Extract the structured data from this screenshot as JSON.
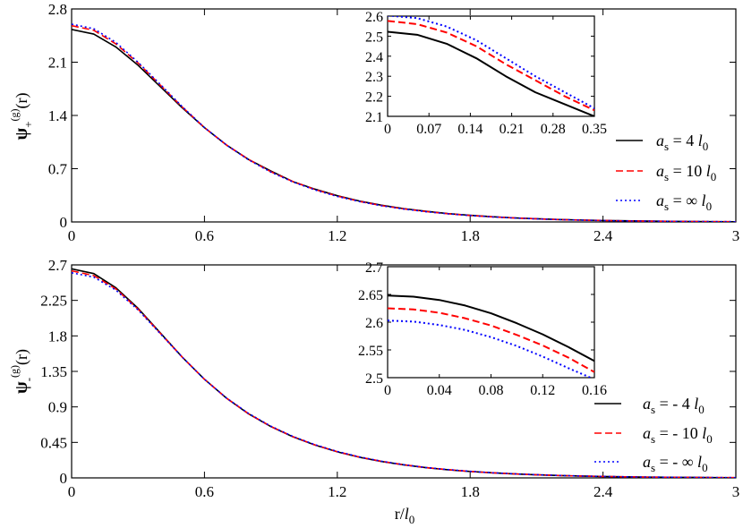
{
  "chart_data": [
    {
      "id": "top",
      "type": "line",
      "ylabel": {
        "main": "ψ",
        "sub": "+",
        "sup": "(g)",
        "arg": "(r)"
      },
      "xlim": [
        0,
        3
      ],
      "ylim": [
        0,
        2.8
      ],
      "xticks": [
        "0",
        "0.6",
        "1.2",
        "1.8",
        "2.4",
        "3"
      ],
      "yticks": [
        "0",
        "0.7",
        "1.4",
        "2.1",
        "2.8"
      ],
      "legend_position": "right",
      "series": [
        {
          "name": "a_s = 4 l_0",
          "label": {
            "a": "a",
            "s": "s",
            "text": " = 4 ",
            "l": "l",
            "zero": "0"
          },
          "style": "solid",
          "color": "#000000",
          "x": [
            0,
            0.1,
            0.2,
            0.3,
            0.4,
            0.5,
            0.6,
            0.7,
            0.8,
            0.9,
            1.0,
            1.1,
            1.2,
            1.3,
            1.4,
            1.5,
            1.6,
            1.7,
            1.8,
            1.9,
            2.0,
            2.1,
            2.2,
            2.3,
            2.4,
            2.5,
            2.6,
            2.7,
            2.8,
            2.9,
            3.0
          ],
          "y": [
            2.53,
            2.47,
            2.3,
            2.06,
            1.78,
            1.5,
            1.24,
            1.01,
            0.82,
            0.67,
            0.53,
            0.43,
            0.345,
            0.275,
            0.22,
            0.175,
            0.14,
            0.11,
            0.087,
            0.068,
            0.053,
            0.042,
            0.032,
            0.025,
            0.019,
            0.015,
            0.011,
            0.008,
            0.006,
            0.004,
            0.003
          ]
        },
        {
          "name": "a_s = 10 l_0",
          "label": {
            "a": "a",
            "s": "s",
            "text": " = 10 ",
            "l": "l",
            "zero": "0"
          },
          "style": "dashed",
          "color": "#ff0000",
          "x": [
            0,
            0.1,
            0.2,
            0.3,
            0.4,
            0.5,
            0.6,
            0.7,
            0.8,
            0.9,
            1.0,
            1.1,
            1.2,
            1.3,
            1.4,
            1.5,
            1.6,
            1.7,
            1.8,
            1.9,
            2.0,
            2.1,
            2.2,
            2.3,
            2.4,
            2.5,
            2.6,
            2.7,
            2.8,
            2.9,
            3.0
          ],
          "y": [
            2.58,
            2.52,
            2.34,
            2.09,
            1.8,
            1.51,
            1.24,
            1.01,
            0.82,
            0.66,
            0.53,
            0.425,
            0.34,
            0.27,
            0.215,
            0.172,
            0.137,
            0.108,
            0.085,
            0.067,
            0.052,
            0.041,
            0.031,
            0.024,
            0.019,
            0.014,
            0.011,
            0.008,
            0.006,
            0.004,
            0.003
          ]
        },
        {
          "name": "a_s = ∞ l_0",
          "label": {
            "a": "a",
            "s": "s",
            "text": " = ∞ ",
            "l": "l",
            "zero": "0"
          },
          "style": "dotted",
          "color": "#0000ff",
          "x": [
            0,
            0.1,
            0.2,
            0.3,
            0.4,
            0.5,
            0.6,
            0.7,
            0.8,
            0.9,
            1.0,
            1.1,
            1.2,
            1.3,
            1.4,
            1.5,
            1.6,
            1.7,
            1.8,
            1.9,
            2.0,
            2.1,
            2.2,
            2.3,
            2.4,
            2.5,
            2.6,
            2.7,
            2.8,
            2.9,
            3.0
          ],
          "y": [
            2.6,
            2.54,
            2.36,
            2.1,
            1.81,
            1.515,
            1.24,
            1.01,
            0.815,
            0.655,
            0.525,
            0.42,
            0.335,
            0.268,
            0.213,
            0.17,
            0.135,
            0.107,
            0.084,
            0.066,
            0.052,
            0.04,
            0.031,
            0.024,
            0.018,
            0.014,
            0.011,
            0.008,
            0.006,
            0.004,
            0.003
          ]
        }
      ],
      "inset": {
        "xlim": [
          0,
          0.35
        ],
        "ylim": [
          2.1,
          2.6
        ],
        "xticks": [
          "0",
          "0.07",
          "0.14",
          "0.21",
          "0.28",
          "0.35"
        ],
        "yticks": [
          "2.1",
          "2.2",
          "2.3",
          "2.4",
          "2.5",
          "2.6"
        ],
        "series": [
          {
            "style": "solid",
            "color": "#000000",
            "x": [
              0,
              0.05,
              0.1,
              0.15,
              0.2,
              0.25,
              0.3,
              0.35
            ],
            "y": [
              2.522,
              2.507,
              2.462,
              2.39,
              2.3,
              2.22,
              2.16,
              2.1
            ]
          },
          {
            "style": "dashed",
            "color": "#ff0000",
            "x": [
              0,
              0.05,
              0.1,
              0.15,
              0.2,
              0.25,
              0.3,
              0.35
            ],
            "y": [
              2.576,
              2.56,
              2.518,
              2.45,
              2.36,
              2.28,
              2.2,
              2.13
            ]
          },
          {
            "style": "dotted",
            "color": "#0000ff",
            "x": [
              0,
              0.05,
              0.1,
              0.15,
              0.2,
              0.25,
              0.3,
              0.35
            ],
            "y": [
              2.603,
              2.59,
              2.548,
              2.48,
              2.39,
              2.3,
              2.22,
              2.14
            ]
          }
        ]
      }
    },
    {
      "id": "bottom",
      "type": "line",
      "ylabel": {
        "main": "ψ",
        "sub": "-",
        "sup": "(g)",
        "arg": "(r)"
      },
      "xlabel": {
        "main": "r/",
        "l": "l",
        "sub": "0"
      },
      "xlim": [
        0,
        3
      ],
      "ylim": [
        0,
        2.7
      ],
      "xticks": [
        "0",
        "0.6",
        "1.2",
        "1.8",
        "2.4",
        "3"
      ],
      "yticks": [
        "0",
        "0.45",
        "0.9",
        "1.35",
        "1.8",
        "2.25",
        "2.7"
      ],
      "legend_position": "right",
      "series": [
        {
          "name": "a_s = - 4 l_0",
          "label": {
            "a": "a",
            "s": "s",
            "text": " = - 4 ",
            "l": "l",
            "zero": "0"
          },
          "style": "solid",
          "color": "#000000",
          "x": [
            0,
            0.1,
            0.2,
            0.3,
            0.4,
            0.5,
            0.6,
            0.7,
            0.8,
            0.9,
            1.0,
            1.1,
            1.2,
            1.3,
            1.4,
            1.5,
            1.6,
            1.7,
            1.8,
            1.9,
            2.0,
            2.1,
            2.2,
            2.3,
            2.4,
            2.5,
            2.6,
            2.7,
            2.8,
            2.9,
            3.0
          ],
          "y": [
            2.65,
            2.59,
            2.41,
            2.15,
            1.84,
            1.53,
            1.25,
            1.01,
            0.81,
            0.65,
            0.52,
            0.415,
            0.33,
            0.262,
            0.208,
            0.165,
            0.13,
            0.103,
            0.081,
            0.064,
            0.05,
            0.039,
            0.03,
            0.023,
            0.018,
            0.014,
            0.01,
            0.008,
            0.006,
            0.004,
            0.003
          ]
        },
        {
          "name": "a_s = - 10 l_0",
          "label": {
            "a": "a",
            "s": "s",
            "text": " = - 10 ",
            "l": "l",
            "zero": "0"
          },
          "style": "dashed",
          "color": "#ff0000",
          "x": [
            0,
            0.1,
            0.2,
            0.3,
            0.4,
            0.5,
            0.6,
            0.7,
            0.8,
            0.9,
            1.0,
            1.1,
            1.2,
            1.3,
            1.4,
            1.5,
            1.6,
            1.7,
            1.8,
            1.9,
            2.0,
            2.1,
            2.2,
            2.3,
            2.4,
            2.5,
            2.6,
            2.7,
            2.8,
            2.9,
            3.0
          ],
          "y": [
            2.625,
            2.565,
            2.395,
            2.14,
            1.835,
            1.53,
            1.25,
            1.01,
            0.812,
            0.652,
            0.522,
            0.417,
            0.332,
            0.264,
            0.21,
            0.166,
            0.131,
            0.104,
            0.082,
            0.064,
            0.05,
            0.039,
            0.03,
            0.023,
            0.018,
            0.014,
            0.01,
            0.008,
            0.006,
            0.004,
            0.003
          ]
        },
        {
          "name": "a_s = - ∞ l_0",
          "label": {
            "a": "a",
            "s": "s",
            "text": " = - ∞ ",
            "l": "l",
            "zero": "0"
          },
          "style": "dotted",
          "color": "#0000ff",
          "x": [
            0,
            0.1,
            0.2,
            0.3,
            0.4,
            0.5,
            0.6,
            0.7,
            0.8,
            0.9,
            1.0,
            1.1,
            1.2,
            1.3,
            1.4,
            1.5,
            1.6,
            1.7,
            1.8,
            1.9,
            2.0,
            2.1,
            2.2,
            2.3,
            2.4,
            2.5,
            2.6,
            2.7,
            2.8,
            2.9,
            3.0
          ],
          "y": [
            2.6,
            2.545,
            2.38,
            2.13,
            1.83,
            1.53,
            1.25,
            1.012,
            0.815,
            0.655,
            0.525,
            0.42,
            0.335,
            0.266,
            0.211,
            0.167,
            0.132,
            0.105,
            0.083,
            0.065,
            0.051,
            0.04,
            0.031,
            0.024,
            0.018,
            0.014,
            0.01,
            0.008,
            0.006,
            0.004,
            0.003
          ]
        }
      ],
      "inset": {
        "xlim": [
          0,
          0.16
        ],
        "ylim": [
          2.5,
          2.7
        ],
        "xticks": [
          "0",
          "0.04",
          "0.08",
          "0.12",
          "0.16"
        ],
        "yticks": [
          "2.5",
          "2.55",
          "2.6",
          "2.65",
          "2.7"
        ],
        "series": [
          {
            "style": "solid",
            "color": "#000000",
            "x": [
              0,
              0.02,
              0.04,
              0.06,
              0.08,
              0.1,
              0.12,
              0.14,
              0.16
            ],
            "y": [
              2.648,
              2.646,
              2.64,
              2.63,
              2.616,
              2.598,
              2.578,
              2.555,
              2.53
            ]
          },
          {
            "style": "dashed",
            "color": "#ff0000",
            "x": [
              0,
              0.02,
              0.04,
              0.06,
              0.08,
              0.1,
              0.12,
              0.14,
              0.16
            ],
            "y": [
              2.625,
              2.623,
              2.617,
              2.607,
              2.594,
              2.577,
              2.558,
              2.536,
              2.51
            ]
          },
          {
            "style": "dotted",
            "color": "#0000ff",
            "x": [
              0,
              0.02,
              0.04,
              0.06,
              0.08,
              0.1,
              0.12,
              0.14,
              0.16
            ],
            "y": [
              2.603,
              2.601,
              2.595,
              2.586,
              2.573,
              2.557,
              2.538,
              2.517,
              2.497
            ]
          }
        ]
      }
    }
  ]
}
